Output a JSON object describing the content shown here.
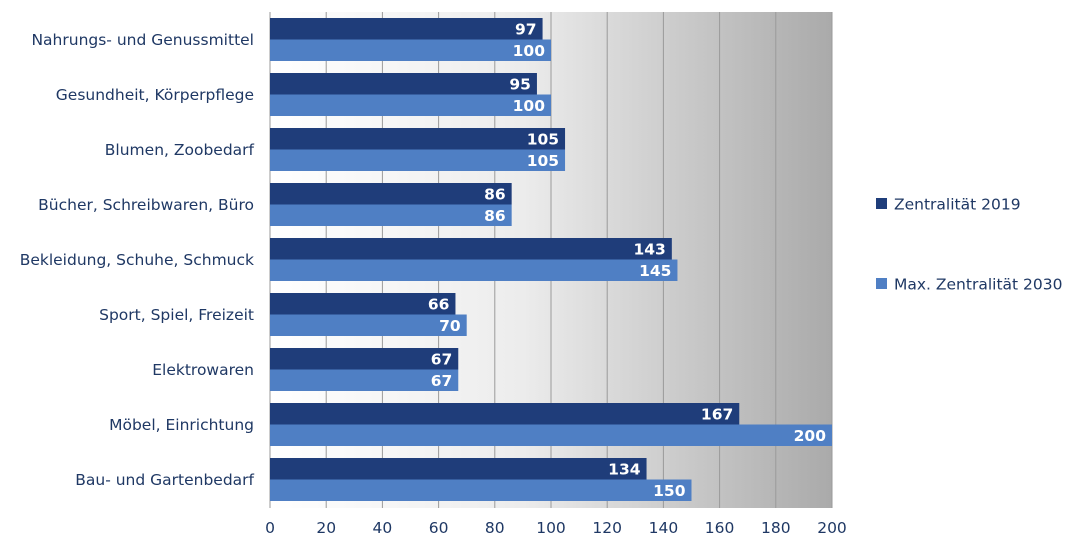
{
  "chart_data": {
    "type": "bar",
    "orientation": "horizontal",
    "categories": [
      "Nahrungs- und Genussmittel",
      "Gesundheit, Körperpflege",
      "Blumen, Zoobedarf",
      "Bücher, Schreibwaren, Büro",
      "Bekleidung, Schuhe, Schmuck",
      "Sport, Spiel, Freizeit",
      "Elektrowaren",
      "Möbel, Einrichtung",
      "Bau- und Gartenbedarf"
    ],
    "series": [
      {
        "name": "Zentralität 2019",
        "color": "#1f3d7a",
        "values": [
          97,
          95,
          105,
          86,
          143,
          66,
          67,
          167,
          134
        ]
      },
      {
        "name": "Max. Zentralität 2030",
        "color": "#4f7fc4",
        "values": [
          100,
          100,
          105,
          86,
          145,
          70,
          67,
          200,
          150
        ]
      }
    ],
    "xlim": [
      0,
      200
    ],
    "xticks": [
      "0",
      "20",
      "40",
      "60",
      "80",
      "100",
      "120",
      "140",
      "160",
      "180",
      "200"
    ],
    "grid": true,
    "data_labels": true,
    "legend_position": "right"
  }
}
